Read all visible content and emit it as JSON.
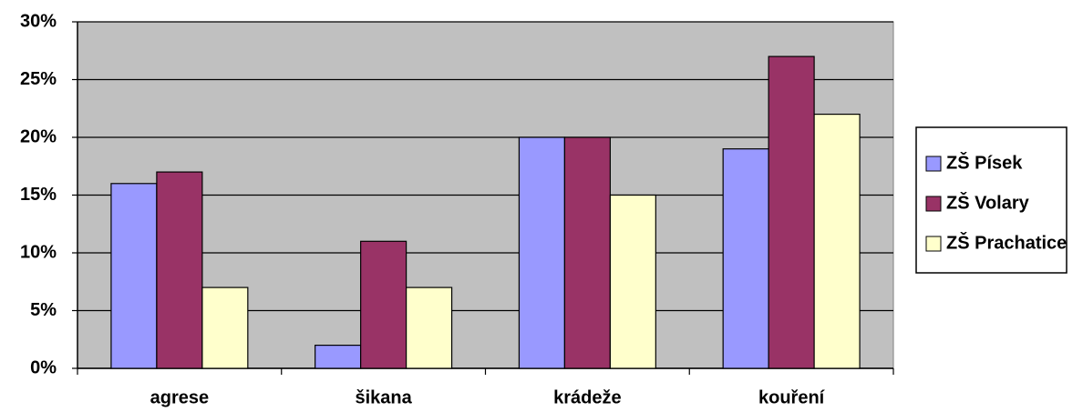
{
  "chart_data": {
    "type": "bar",
    "categories": [
      "agrese",
      "šikana",
      "krádeže",
      "kouření"
    ],
    "series": [
      {
        "name": "ZŠ Písek",
        "color": "#9999ff",
        "values": [
          16,
          2,
          20,
          19
        ]
      },
      {
        "name": "ZŠ Volary",
        "color": "#993366",
        "values": [
          17,
          11,
          20,
          27
        ]
      },
      {
        "name": "ZŠ Prachatice",
        "color": "#ffffcc",
        "values": [
          7,
          7,
          15,
          22
        ]
      }
    ],
    "ylim": [
      0,
      30
    ],
    "yticks": [
      {
        "value": 0,
        "label": "0%"
      },
      {
        "value": 5,
        "label": "5%"
      },
      {
        "value": 10,
        "label": "10%"
      },
      {
        "value": 15,
        "label": "15%"
      },
      {
        "value": 20,
        "label": "20%"
      },
      {
        "value": 25,
        "label": "25%"
      },
      {
        "value": 30,
        "label": "30%"
      }
    ],
    "grid": true,
    "legend": "right",
    "plot_background": "#c0c0c0"
  }
}
